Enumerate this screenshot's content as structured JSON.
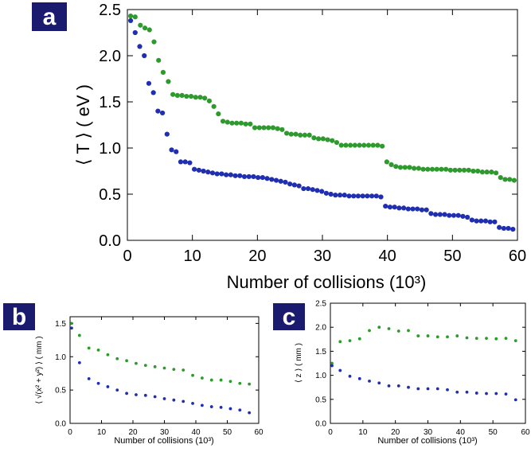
{
  "panels": {
    "a": {
      "label": "a"
    },
    "b": {
      "label": "b"
    },
    "c": {
      "label": "c"
    }
  },
  "colors": {
    "series_green": "#2e9a2e",
    "series_blue": "#1f2fb0",
    "badge_bg": "#1a1a6e"
  },
  "chart_data": [
    {
      "id": "a",
      "type": "scatter",
      "title": "",
      "xlabel": "Number of collisions (10³)",
      "ylabel": "⟨ T ⟩ ( eV )",
      "xlim": [
        0,
        60
      ],
      "ylim": [
        0,
        2.5
      ],
      "xticks": [
        0,
        10,
        20,
        30,
        40,
        50,
        60
      ],
      "yticks": [
        0.0,
        0.5,
        1.0,
        1.5,
        2.0,
        2.5
      ],
      "ytick_labels": [
        "0.0",
        "0.5",
        "1.0",
        "1.5",
        "2.0",
        "2.5"
      ],
      "series": [
        {
          "name": "green",
          "color": "#2e9a2e",
          "x": [
            0.5,
            1.2,
            2,
            2.7,
            3.4,
            4.1,
            4.8,
            5.5,
            6.3,
            7,
            7.7,
            8.4,
            9.1,
            9.8,
            10.5,
            11.2,
            11.9,
            12.6,
            13.3,
            14,
            14.7,
            15.4,
            16.1,
            16.8,
            17.5,
            18.2,
            18.9,
            19.6,
            20.3,
            21,
            21.7,
            22.4,
            23.1,
            23.8,
            24.5,
            25.2,
            25.9,
            26.6,
            27.3,
            28,
            28.7,
            29.4,
            30.1,
            30.8,
            31.5,
            32.2,
            32.9,
            33.6,
            34.3,
            35,
            35.7,
            36.4,
            37.1,
            37.8,
            38.5,
            39.2,
            39.9,
            40.6,
            41.3,
            42,
            42.7,
            43.4,
            44.1,
            44.8,
            45.5,
            46.2,
            46.9,
            47.6,
            48.3,
            49,
            49.7,
            50.4,
            51.1,
            51.8,
            52.5,
            53.2,
            53.9,
            54.6,
            55.3,
            56,
            56.7,
            57.4,
            58.1,
            58.8,
            59.5
          ],
          "y": [
            2.43,
            2.42,
            2.33,
            2.3,
            2.28,
            2.15,
            1.95,
            1.82,
            1.72,
            1.58,
            1.57,
            1.57,
            1.56,
            1.56,
            1.55,
            1.55,
            1.54,
            1.51,
            1.45,
            1.37,
            1.29,
            1.28,
            1.27,
            1.27,
            1.27,
            1.26,
            1.26,
            1.22,
            1.22,
            1.22,
            1.22,
            1.22,
            1.21,
            1.2,
            1.16,
            1.15,
            1.15,
            1.14,
            1.14,
            1.14,
            1.11,
            1.1,
            1.1,
            1.09,
            1.08,
            1.06,
            1.03,
            1.03,
            1.03,
            1.03,
            1.03,
            1.03,
            1.03,
            1.03,
            1.03,
            1.02,
            0.85,
            0.82,
            0.8,
            0.79,
            0.79,
            0.79,
            0.78,
            0.78,
            0.77,
            0.77,
            0.77,
            0.77,
            0.77,
            0.77,
            0.76,
            0.76,
            0.76,
            0.76,
            0.76,
            0.75,
            0.75,
            0.74,
            0.74,
            0.74,
            0.73,
            0.68,
            0.66,
            0.66,
            0.65
          ]
        },
        {
          "name": "blue",
          "color": "#1f2fb0",
          "x": [
            0.5,
            1.2,
            1.9,
            2.6,
            3.3,
            4,
            4.7,
            5.4,
            6.1,
            6.8,
            7.5,
            8.2,
            8.9,
            9.6,
            10.3,
            11,
            11.7,
            12.4,
            13.1,
            13.8,
            14.5,
            15.2,
            15.9,
            16.6,
            17.3,
            18,
            18.7,
            19.4,
            20.1,
            20.8,
            21.5,
            22.2,
            22.9,
            23.6,
            24.3,
            25,
            25.7,
            26.4,
            27.1,
            27.8,
            28.5,
            29.2,
            29.9,
            30.6,
            31.3,
            32,
            32.7,
            33.4,
            34.1,
            34.8,
            35.5,
            36.2,
            36.9,
            37.6,
            38.3,
            39,
            39.7,
            40.4,
            41.1,
            41.8,
            42.5,
            43.2,
            43.9,
            44.6,
            45.3,
            46,
            46.7,
            47.4,
            48.1,
            48.8,
            49.5,
            50.2,
            50.9,
            51.6,
            52.3,
            53,
            53.7,
            54.4,
            55.1,
            55.8,
            56.5,
            57.2,
            57.9,
            58.6,
            59.3
          ],
          "y": [
            2.38,
            2.25,
            2.1,
            2.0,
            1.7,
            1.6,
            1.4,
            1.38,
            1.15,
            0.98,
            0.96,
            0.85,
            0.85,
            0.84,
            0.77,
            0.76,
            0.75,
            0.74,
            0.73,
            0.72,
            0.72,
            0.71,
            0.71,
            0.7,
            0.7,
            0.69,
            0.69,
            0.69,
            0.68,
            0.68,
            0.67,
            0.66,
            0.65,
            0.64,
            0.63,
            0.61,
            0.6,
            0.59,
            0.56,
            0.56,
            0.55,
            0.54,
            0.53,
            0.51,
            0.5,
            0.49,
            0.49,
            0.49,
            0.48,
            0.48,
            0.48,
            0.48,
            0.48,
            0.48,
            0.48,
            0.47,
            0.37,
            0.36,
            0.36,
            0.35,
            0.35,
            0.34,
            0.34,
            0.34,
            0.33,
            0.33,
            0.29,
            0.28,
            0.28,
            0.28,
            0.27,
            0.27,
            0.27,
            0.26,
            0.25,
            0.22,
            0.21,
            0.21,
            0.21,
            0.2,
            0.2,
            0.14,
            0.13,
            0.13,
            0.12
          ]
        }
      ]
    },
    {
      "id": "b",
      "type": "scatter",
      "title": "",
      "xlabel": "Number of collisions (10³)",
      "ylabel": "⟨ √(x² + y²) ⟩ ( mm )",
      "xlim": [
        0,
        60
      ],
      "ylim": [
        0,
        1.6
      ],
      "xticks": [
        0,
        10,
        20,
        30,
        40,
        50,
        60
      ],
      "yticks": [
        0.0,
        0.5,
        1.0,
        1.5
      ],
      "ytick_labels": [
        "0.0",
        "0.5",
        "1.0",
        "1.5"
      ],
      "series": [
        {
          "name": "green",
          "color": "#2e9a2e",
          "x": [
            0.5,
            3,
            6,
            9,
            12,
            15,
            18,
            21,
            24,
            27,
            30,
            33,
            36,
            39,
            42,
            45,
            48,
            51,
            54,
            57
          ],
          "y": [
            1.5,
            1.32,
            1.13,
            1.1,
            1.03,
            0.97,
            0.94,
            0.9,
            0.87,
            0.85,
            0.83,
            0.81,
            0.8,
            0.72,
            0.68,
            0.65,
            0.65,
            0.63,
            0.6,
            0.59
          ]
        },
        {
          "name": "blue",
          "color": "#1f2fb0",
          "x": [
            0.5,
            3,
            6,
            9,
            12,
            15,
            18,
            21,
            24,
            27,
            30,
            33,
            36,
            39,
            42,
            45,
            48,
            51,
            54,
            57
          ],
          "y": [
            1.43,
            0.91,
            0.67,
            0.6,
            0.55,
            0.5,
            0.45,
            0.43,
            0.42,
            0.4,
            0.37,
            0.35,
            0.33,
            0.3,
            0.27,
            0.25,
            0.24,
            0.22,
            0.2,
            0.16
          ]
        }
      ]
    },
    {
      "id": "c",
      "type": "scatter",
      "title": "",
      "xlabel": "Number of collisions (10³)",
      "ylabel": "⟨ z ⟩ ( mm )",
      "xlim": [
        0,
        60
      ],
      "ylim": [
        0,
        2.5
      ],
      "xticks": [
        0,
        10,
        20,
        30,
        40,
        50,
        60
      ],
      "yticks": [
        0.0,
        0.5,
        1.0,
        1.5,
        2.0,
        2.5
      ],
      "ytick_labels": [
        "0.0",
        "0.5",
        "1.0",
        "1.5",
        "2.0",
        "2.5"
      ],
      "series": [
        {
          "name": "green",
          "color": "#2e9a2e",
          "x": [
            0.5,
            3,
            6,
            9,
            12,
            15,
            18,
            21,
            24,
            27,
            30,
            33,
            36,
            39,
            42,
            45,
            48,
            51,
            54,
            57
          ],
          "y": [
            1.25,
            1.7,
            1.72,
            1.76,
            1.93,
            2.0,
            1.97,
            1.92,
            1.93,
            1.82,
            1.82,
            1.8,
            1.8,
            1.82,
            1.78,
            1.77,
            1.77,
            1.76,
            1.77,
            1.72
          ]
        },
        {
          "name": "blue",
          "color": "#1f2fb0",
          "x": [
            0.5,
            3,
            6,
            9,
            12,
            15,
            18,
            21,
            24,
            27,
            30,
            33,
            36,
            39,
            42,
            45,
            48,
            51,
            54,
            57
          ],
          "y": [
            1.2,
            1.1,
            0.98,
            0.93,
            0.88,
            0.84,
            0.78,
            0.78,
            0.75,
            0.72,
            0.72,
            0.72,
            0.7,
            0.65,
            0.65,
            0.63,
            0.62,
            0.62,
            0.61,
            0.49
          ]
        }
      ]
    }
  ]
}
